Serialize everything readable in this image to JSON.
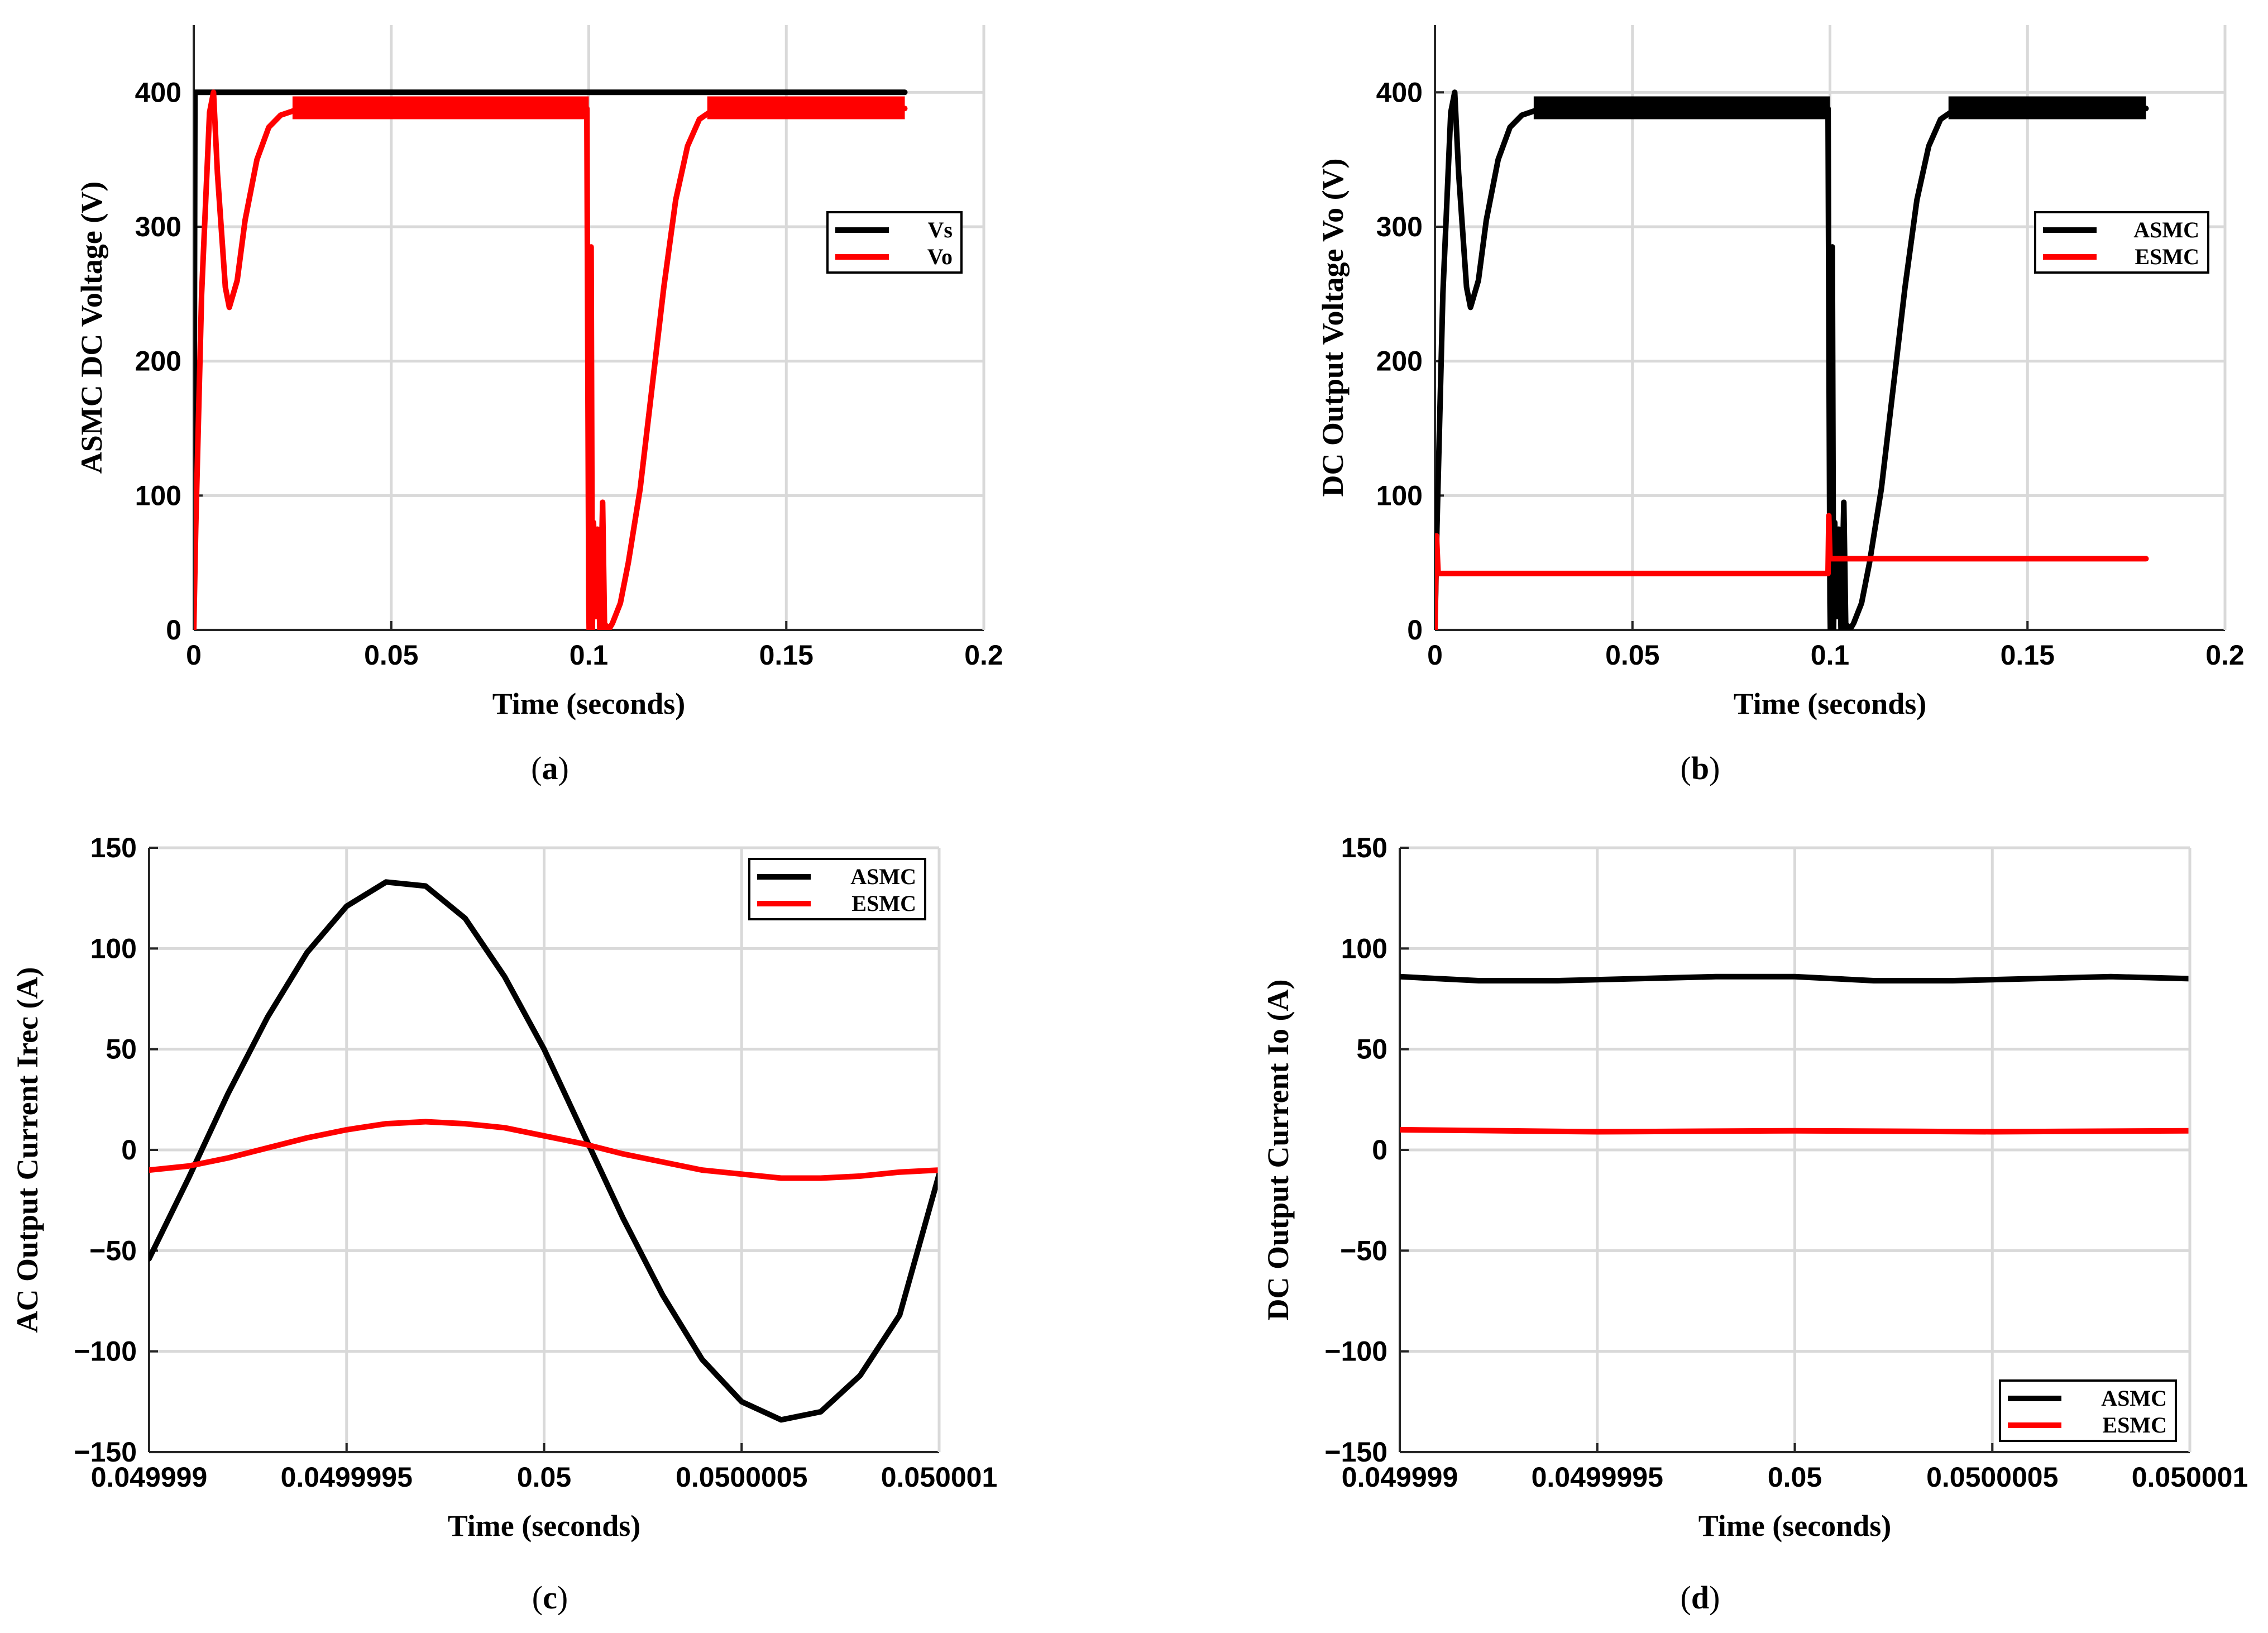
{
  "panels": [
    {
      "id": "a",
      "label": "a",
      "chart_data": {
        "type": "line",
        "xlabel": "Time (seconds)",
        "ylabel": "ASMC DC Voltage (V)",
        "xlim": [
          0,
          0.2
        ],
        "ylim": [
          0,
          450
        ],
        "xticks": [
          0,
          0.05,
          0.1,
          0.15,
          0.2
        ],
        "xtick_labels": [
          "0",
          "0.05",
          "0.1",
          "0.15",
          "0.2"
        ],
        "yticks": [
          0,
          100,
          200,
          300,
          400
        ],
        "ytick_labels": [
          "0",
          "100",
          "200",
          "300",
          "400"
        ],
        "legend_position": "top-right",
        "series": [
          {
            "name": "Vs",
            "color": "#000000",
            "x": [
              0,
              0.0003,
              0.18
            ],
            "y": [
              0,
              400,
              400
            ]
          },
          {
            "name": "Vo",
            "color": "#ff0000",
            "ripple_band": [
              0.025,
              0.1,
              0.13,
              0.18,
              380,
              397
            ],
            "x": [
              0,
              0.0005,
              0.002,
              0.004,
              0.005,
              0.006,
              0.008,
              0.009,
              0.011,
              0.013,
              0.016,
              0.019,
              0.022,
              0.025,
              0.03,
              0.06,
              0.0995,
              0.1,
              0.1001,
              0.1006,
              0.1009,
              0.1012,
              0.1018,
              0.1022,
              0.1028,
              0.1035,
              0.104,
              0.1045,
              0.105,
              0.106,
              0.108,
              0.11,
              0.113,
              0.116,
              0.119,
              0.122,
              0.125,
              0.128,
              0.131,
              0.135,
              0.14,
              0.18
            ],
            "y": [
              0,
              75,
              250,
              385,
              400,
              340,
              255,
              240,
              260,
              305,
              350,
              374,
              383,
              386,
              388,
              388,
              388,
              20,
              0,
              285,
              0,
              80,
              10,
              75,
              0,
              95,
              0,
              3,
              0,
              5,
              20,
              50,
              105,
              180,
              255,
              320,
              360,
              380,
              386,
              388,
              388,
              388
            ]
          }
        ]
      }
    },
    {
      "id": "b",
      "label": "b",
      "chart_data": {
        "type": "line",
        "xlabel": "Time (seconds)",
        "ylabel": "DC Output Voltage Vo (V)",
        "xlim": [
          0,
          0.2
        ],
        "ylim": [
          0,
          450
        ],
        "xticks": [
          0,
          0.05,
          0.1,
          0.15,
          0.2
        ],
        "xtick_labels": [
          "0",
          "0.05",
          "0.1",
          "0.15",
          "0.2"
        ],
        "yticks": [
          0,
          100,
          200,
          300,
          400
        ],
        "ytick_labels": [
          "0",
          "100",
          "200",
          "300",
          "400"
        ],
        "legend_position": "top-right",
        "series": [
          {
            "name": "ASMC",
            "color": "#000000",
            "ripple_band": [
              0.025,
              0.1,
              0.13,
              0.18,
              380,
              397
            ],
            "x": [
              0,
              0.0005,
              0.002,
              0.004,
              0.005,
              0.006,
              0.008,
              0.009,
              0.011,
              0.013,
              0.016,
              0.019,
              0.022,
              0.025,
              0.03,
              0.06,
              0.0995,
              0.1,
              0.1001,
              0.1006,
              0.1009,
              0.1012,
              0.1018,
              0.1022,
              0.1028,
              0.1035,
              0.104,
              0.1045,
              0.105,
              0.106,
              0.108,
              0.11,
              0.113,
              0.116,
              0.119,
              0.122,
              0.125,
              0.128,
              0.131,
              0.135,
              0.14,
              0.18
            ],
            "y": [
              0,
              75,
              250,
              385,
              400,
              340,
              255,
              240,
              260,
              305,
              350,
              374,
              383,
              386,
              388,
              388,
              388,
              20,
              0,
              285,
              0,
              80,
              10,
              75,
              0,
              95,
              0,
              3,
              0,
              5,
              20,
              50,
              105,
              180,
              255,
              320,
              360,
              380,
              386,
              388,
              388,
              388
            ]
          },
          {
            "name": "ESMC",
            "color": "#ff0000",
            "x": [
              0,
              0.0004,
              0.0008,
              0.0015,
              0.0995,
              0.0997,
              0.1,
              0.1003,
              0.18
            ],
            "y": [
              0,
              70,
              42,
              42,
              42,
              85,
              53,
              53,
              53
            ]
          }
        ]
      }
    },
    {
      "id": "c",
      "label": "c",
      "chart_data": {
        "type": "line",
        "xlabel": "Time (seconds)",
        "ylabel": "AC Output Current Irec (A)",
        "xlim": [
          0.049999,
          0.050001
        ],
        "ylim": [
          -150,
          150
        ],
        "xticks": [
          0.049999,
          0.0499995,
          0.05,
          0.0500005,
          0.050001
        ],
        "xtick_labels": [
          "0.049999",
          "0.0499995",
          "0.05",
          "0.0500005",
          "0.050001"
        ],
        "yticks": [
          -150,
          -100,
          -50,
          0,
          50,
          100,
          150
        ],
        "ytick_labels": [
          "−150",
          "−100",
          "−50",
          "0",
          "50",
          "100",
          "150"
        ],
        "legend_position": "top-right",
        "series": [
          {
            "name": "ASMC",
            "color": "#000000",
            "x": [
              0.049999,
              0.0499991,
              0.0499992,
              0.0499993,
              0.0499994,
              0.0499995,
              0.0499996,
              0.0499997,
              0.0499998,
              0.0499999,
              0.05,
              0.0500001,
              0.0500002,
              0.0500003,
              0.0500004,
              0.0500005,
              0.0500006,
              0.0500007,
              0.0500008,
              0.0500009,
              0.050001
            ],
            "y": [
              -54,
              -14,
              28,
              66,
              98,
              121,
              133,
              131,
              115,
              86,
              50,
              8,
              -34,
              -72,
              -104,
              -125,
              -134,
              -130,
              -112,
              -82,
              -12
            ]
          },
          {
            "name": "ESMC",
            "color": "#ff0000",
            "x": [
              0.049999,
              0.0499991,
              0.0499992,
              0.0499993,
              0.0499994,
              0.0499995,
              0.0499996,
              0.0499997,
              0.0499998,
              0.0499999,
              0.05,
              0.0500001,
              0.0500002,
              0.0500003,
              0.0500004,
              0.0500005,
              0.0500006,
              0.0500007,
              0.0500008,
              0.0500009,
              0.050001
            ],
            "y": [
              -10,
              -8,
              -4,
              1,
              6,
              10,
              13,
              14,
              13,
              11,
              7,
              3,
              -2,
              -6,
              -10,
              -12,
              -14,
              -14,
              -13,
              -11,
              -10
            ]
          }
        ]
      }
    },
    {
      "id": "d",
      "label": "d",
      "chart_data": {
        "type": "line",
        "xlabel": "Time (seconds)",
        "ylabel": "DC Output Current Io (A)",
        "xlim": [
          0.049999,
          0.050001
        ],
        "ylim": [
          -150,
          150
        ],
        "xticks": [
          0.049999,
          0.0499995,
          0.05,
          0.0500005,
          0.050001
        ],
        "xtick_labels": [
          "0.049999",
          "0.0499995",
          "0.05",
          "0.0500005",
          "0.050001"
        ],
        "yticks": [
          -150,
          -100,
          -50,
          0,
          50,
          100,
          150
        ],
        "ytick_labels": [
          "−150",
          "−100",
          "−50",
          "0",
          "50",
          "100",
          "150"
        ],
        "legend_position": "bottom-right",
        "series": [
          {
            "name": "ASMC",
            "color": "#000000",
            "x": [
              0.049999,
              0.0499992,
              0.0499994,
              0.0499996,
              0.0499998,
              0.05,
              0.0500002,
              0.0500004,
              0.0500006,
              0.0500008,
              0.050001
            ],
            "y": [
              86,
              84,
              84,
              85,
              86,
              86,
              84,
              84,
              85,
              86,
              85
            ]
          },
          {
            "name": "ESMC",
            "color": "#ff0000",
            "x": [
              0.049999,
              0.0499995,
              0.05,
              0.0500005,
              0.050001
            ],
            "y": [
              10,
              9,
              9.5,
              9,
              9.5
            ]
          }
        ]
      }
    }
  ]
}
